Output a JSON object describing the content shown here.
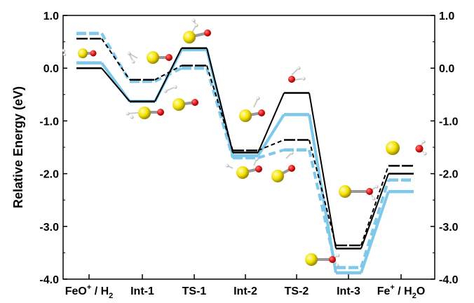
{
  "chart_data": {
    "type": "line",
    "ylabel": "Relative Energy (eV)",
    "ylim": [
      -4.0,
      1.0
    ],
    "yticks": [
      {
        "value": 1.0,
        "label": "1.0"
      },
      {
        "value": 0.0,
        "label": "0.0"
      },
      {
        "value": -1.0,
        "label": "-1.0"
      },
      {
        "value": -2.0,
        "label": "-2.0"
      },
      {
        "value": -3.0,
        "label": "-3.0"
      },
      {
        "value": -4.0,
        "label": "-4.0"
      }
    ],
    "categories": [
      {
        "main": "FeO",
        "sup": "+",
        "rest": " / H",
        "sub": "2",
        "tail": ""
      },
      {
        "main": "Int-1",
        "sup": "",
        "rest": "",
        "sub": "",
        "tail": ""
      },
      {
        "main": "TS-1",
        "sup": "",
        "rest": "",
        "sub": "",
        "tail": ""
      },
      {
        "main": "Int-2",
        "sup": "",
        "rest": "",
        "sub": "",
        "tail": ""
      },
      {
        "main": "TS-2",
        "sup": "",
        "rest": "",
        "sub": "",
        "tail": ""
      },
      {
        "main": "Int-3",
        "sup": "",
        "rest": "",
        "sub": "",
        "tail": ""
      },
      {
        "main": "Fe",
        "sup": "+",
        "rest": " / H",
        "sub": "2",
        "tail": "O"
      }
    ],
    "series": [
      {
        "values": [
          0.0,
          -0.63,
          0.38,
          -1.6,
          -0.47,
          -3.42,
          -2.0
        ],
        "color": "#000000",
        "style": "solid",
        "width": 2
      },
      {
        "values": [
          0.56,
          -0.22,
          0.05,
          -1.56,
          -1.36,
          -3.36,
          -1.85
        ],
        "color": "#000000",
        "style": "dashed",
        "width": 2
      },
      {
        "values": [
          0.1,
          -0.63,
          0.35,
          -1.66,
          -0.88,
          -3.88,
          -2.34
        ],
        "color": "#7ec8ea",
        "style": "solid",
        "width": 4
      },
      {
        "values": [
          0.66,
          -0.25,
          0.0,
          -1.7,
          -1.55,
          -3.78,
          -2.12
        ],
        "color": "#7ec8ea",
        "style": "dashed",
        "width": 4
      }
    ],
    "grid": false,
    "molecule_colors": {
      "iron": "#f2e000",
      "oxygen": "#dd1111",
      "hydrogen": "#d8d8d8"
    }
  }
}
